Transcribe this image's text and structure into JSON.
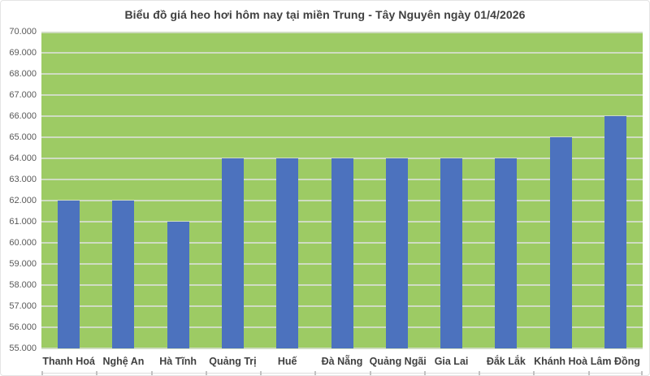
{
  "chart_data": {
    "type": "bar",
    "title": "Biểu đồ giá heo hơi hôm nay tại miền Trung - Tây Nguyên ngày 01/4/2026",
    "categories": [
      "Thanh Hoá",
      "Nghệ An",
      "Hà Tĩnh",
      "Quảng Trị",
      "Huế",
      "Đà Nẵng",
      "Quảng Ngãi",
      "Gia Lai",
      "Đắk Lắk",
      "Khánh Hoà",
      "Lâm Đồng"
    ],
    "values": [
      62000,
      62000,
      61000,
      64000,
      64000,
      64000,
      64000,
      64000,
      64000,
      65000,
      66000
    ],
    "xlabel": "",
    "ylabel": "",
    "ylim": [
      55000,
      70000
    ],
    "ytick_step": 1000,
    "y_tick_labels": [
      "55.000",
      "56.000",
      "57.000",
      "58.000",
      "59.000",
      "60.000",
      "61.000",
      "62.000",
      "63.000",
      "64.000",
      "65.000",
      "66.000",
      "67.000",
      "68.000",
      "69.000",
      "70.000"
    ],
    "grid": true,
    "legend_position": "none",
    "colors": {
      "background": "#ffffff",
      "plot_background": "#9dcb64",
      "bar": "#4c72be",
      "gridline": "#cfdcc2",
      "title_text": "#404040",
      "y_tick_text": "#595959",
      "x_tick_text": "#404040",
      "border": "#e4e4e4"
    }
  }
}
